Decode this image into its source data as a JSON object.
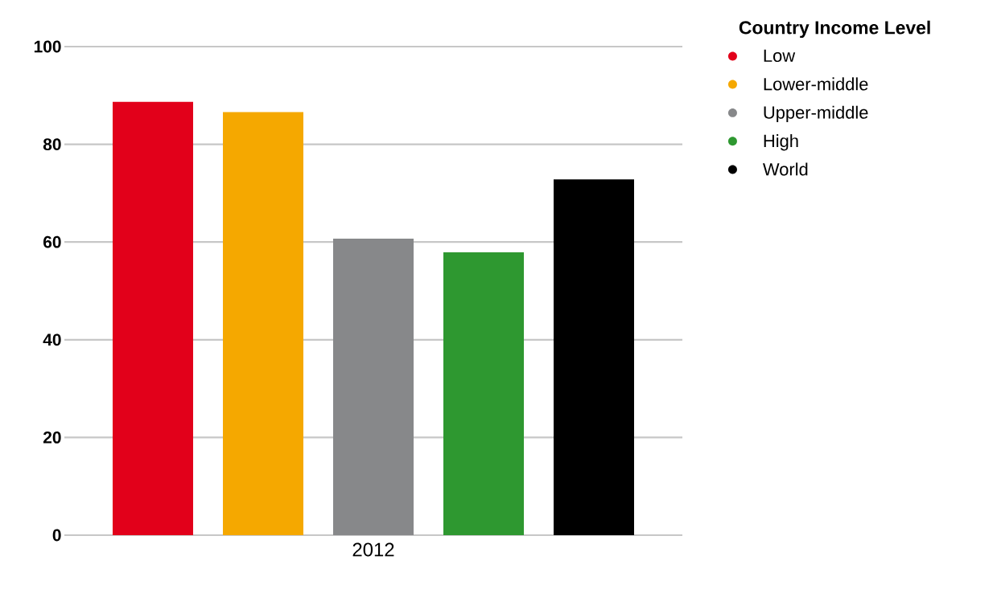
{
  "chart_data": {
    "type": "bar",
    "legend_title": "Country Income Level",
    "categories": [
      "2012"
    ],
    "series": [
      {
        "name": "Low",
        "color": "#e2001a",
        "values": [
          88.7
        ]
      },
      {
        "name": "Lower-middle",
        "color": "#f5a800",
        "values": [
          86.6
        ]
      },
      {
        "name": "Upper-middle",
        "color": "#87888a",
        "values": [
          60.7
        ]
      },
      {
        "name": "High",
        "color": "#2e9830",
        "values": [
          57.9
        ]
      },
      {
        "name": "World",
        "color": "#000000",
        "values": [
          72.8
        ]
      }
    ],
    "ylim": [
      0,
      100
    ],
    "yticks": [
      0,
      20,
      40,
      60,
      80,
      100
    ],
    "grid": "y",
    "legend": "top right"
  }
}
